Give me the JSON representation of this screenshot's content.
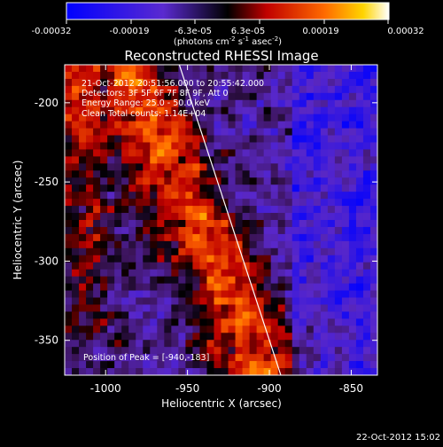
{
  "colorbar": {
    "ticks": [
      "-0.00032",
      "-0.00019",
      "-6.3e-05",
      "6.3e-05",
      "0.00019",
      "0.00032"
    ],
    "unit_parts": [
      "(photons cm",
      "-2",
      " s",
      "-1",
      " asec",
      "-2",
      ")"
    ]
  },
  "image": {
    "title": "Reconstructed RHESSI Image",
    "info": [
      "21-Oct-2012 20:51:56.000 to 20:55:42.000",
      "Detectors: 3F 5F 6F 7F 8F 9F, Att 0",
      "Energy Range: 25.0 - 50.0 keV",
      "Clean     Total counts: 1.14E+04"
    ],
    "peak_text": "Position of Peak = [-940,-183]"
  },
  "axes": {
    "xlabel": "Heliocentric X (arcsec)",
    "ylabel": "Heliocentric Y (arcsec)",
    "x_ticks": [
      "-1000",
      "-950",
      "-900",
      "-850"
    ],
    "y_ticks": [
      "-200",
      "-250",
      "-300",
      "-350"
    ]
  },
  "footer": {
    "timestamp": "22-Oct-2012 15:02"
  },
  "chart_data": {
    "type": "heatmap",
    "title": "Reconstructed RHESSI Image",
    "xlabel": "Heliocentric X (arcsec)",
    "ylabel": "Heliocentric Y (arcsec)",
    "xlim": [
      -1025,
      -834
    ],
    "ylim": [
      -372,
      -176
    ],
    "color_range": [
      -0.00032,
      0.00032
    ],
    "peak": [
      -940,
      -183
    ],
    "limb": [
      [
        -955,
        -176
      ],
      [
        -893,
        -372
      ]
    ]
  }
}
